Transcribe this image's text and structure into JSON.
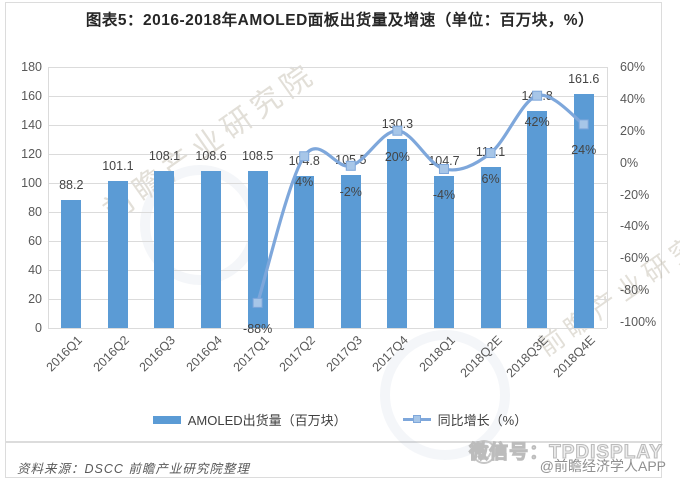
{
  "page": {
    "title": "图表5：2016-2018年AMOLED面板出货量及增速（单位：百万块，%）",
    "source_note": "资料来源：DSCC  前瞻产业研究院整理",
    "watermark_text": "前瞻产业研究院",
    "wechat_badge": {
      "label": "微信号：TPDISPLAY",
      "sub_label": "@前瞻经济学人APP"
    }
  },
  "chart_data": {
    "type": "bar+line",
    "categories": [
      "2016Q1",
      "2016Q2",
      "2016Q3",
      "2016Q4",
      "2017Q1",
      "2017Q2",
      "2017Q3",
      "2017Q4",
      "2018Q1",
      "2018Q2E",
      "2018Q3E",
      "2018Q4E"
    ],
    "series": [
      {
        "name": "AMOLED出货量（百万块）",
        "type": "bar",
        "axis": "left",
        "color": "#5B9BD5",
        "values": [
          88.2,
          101.1,
          108.1,
          108.6,
          108.5,
          104.8,
          105.5,
          130.3,
          104.7,
          111.1,
          149.8,
          161.6
        ],
        "value_labels": [
          "88.2",
          "101.1",
          "108.1",
          "108.6",
          "108.5",
          "104.8",
          "105.5",
          "130.3",
          "104.7",
          "111.1",
          "149.8",
          "161.6"
        ]
      },
      {
        "name": "同比增长（%）",
        "type": "line",
        "axis": "right",
        "color": "#7EA7DB",
        "marker_color": "#A7C6E8",
        "values": [
          null,
          null,
          null,
          null,
          -88,
          4,
          -2,
          20,
          -4,
          6,
          42,
          24
        ],
        "value_labels": [
          null,
          null,
          null,
          null,
          "-88%",
          "4%",
          "-2%",
          "20%",
          "-4%",
          "6%",
          "42%",
          "24%"
        ]
      }
    ],
    "left_axis": {
      "min": 0,
      "max": 180,
      "tick_values": [
        180,
        160,
        140,
        120,
        100,
        80,
        60,
        40,
        20,
        0
      ],
      "tick_labels": [
        "180",
        "160",
        "140",
        "120",
        "100",
        "80",
        "60",
        "40",
        "20",
        "0"
      ]
    },
    "right_axis": {
      "min": -100,
      "max": 60,
      "tick_values": [
        60,
        40,
        20,
        0,
        -20,
        -40,
        -60,
        -80,
        -100
      ],
      "tick_labels": [
        "60%",
        "40%",
        "20%",
        "0%",
        "-20%",
        "-40%",
        "-60%",
        "-80%",
        "-100%"
      ]
    },
    "grid": true,
    "legend_position": "bottom"
  }
}
